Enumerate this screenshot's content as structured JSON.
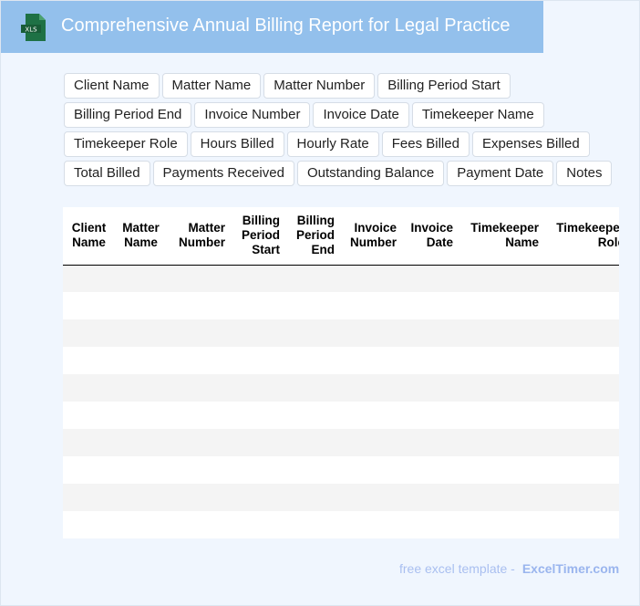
{
  "header": {
    "title": "Comprehensive Annual Billing Report for Legal Practice",
    "icon": "xls-file-icon",
    "icon_label": "XLS"
  },
  "fields": [
    "Client Name",
    "Matter Name",
    "Matter Number",
    "Billing Period Start",
    "Billing Period End",
    "Invoice Number",
    "Invoice Date",
    "Timekeeper Name",
    "Timekeeper Role",
    "Hours Billed",
    "Hourly Rate",
    "Fees Billed",
    "Expenses Billed",
    "Total Billed",
    "Payments Received",
    "Outstanding Balance",
    "Payment Date",
    "Notes"
  ],
  "table": {
    "columns": [
      "Client Name",
      "Matter Name",
      "Matter Number",
      "Billing Period Start",
      "Billing Period End",
      "Invoice Number",
      "Invoice Date",
      "Timekeeper Name",
      "Timekeeper Role"
    ],
    "row_count": 10
  },
  "footer": {
    "text": "free excel template -",
    "brand": "ExcelTimer.com"
  },
  "colors": {
    "header": "#93c0ec",
    "background": "#f0f6fe",
    "icon": "#1e7145"
  }
}
